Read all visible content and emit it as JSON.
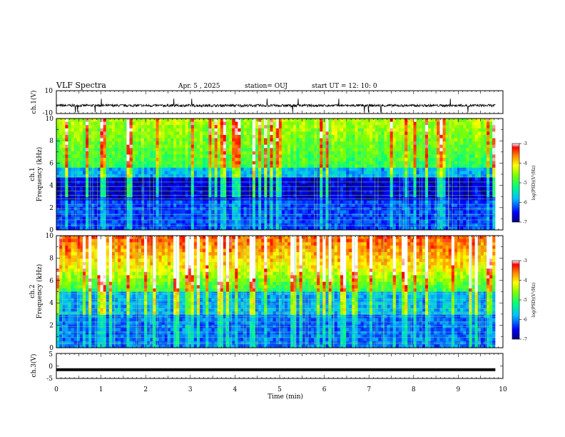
{
  "header": {
    "title": "VLF Spectra",
    "date": "Apr. 5 , 2025",
    "station": "station= OUJ",
    "start": "start UT = 12: 10: 0"
  },
  "chart_data": [
    {
      "type": "line",
      "panel": "ch1-waveform",
      "ylabel": "ch.1(V)",
      "ylim": [
        -10,
        10
      ],
      "yticks": [
        "10",
        "-10"
      ],
      "xlim": [
        0,
        10
      ],
      "baseline": -3,
      "note_series": "dense noisy waveform"
    },
    {
      "type": "heatmap",
      "panel": "ch1-spectrogram",
      "ylabel_line1": "ch.1",
      "ylabel_line2": "Frequency (kHz)",
      "ylim": [
        0,
        10
      ],
      "yticks": [
        "0",
        "2",
        "4",
        "6",
        "8",
        "10"
      ],
      "xlim": [
        0,
        10
      ],
      "colorbar": {
        "label": "log(PSD)(V²/Hz)",
        "range": [
          -7,
          -3
        ],
        "ticks": [
          "-3",
          "-4",
          "-5",
          "-6",
          "-7"
        ]
      }
    },
    {
      "type": "heatmap",
      "panel": "ch2-spectrogram",
      "ylabel_line1": "ch.2",
      "ylabel_line2": "Frequency (kHz)",
      "ylim": [
        0,
        10
      ],
      "yticks": [
        "0",
        "2",
        "4",
        "6",
        "8",
        "10"
      ],
      "xlim": [
        0,
        10
      ],
      "colorbar": {
        "label": "log(PSD)(V²/Hz)",
        "range": [
          -7,
          -3
        ],
        "ticks": [
          "-3",
          "-4",
          "-5",
          "-6",
          "-7"
        ]
      }
    },
    {
      "type": "line",
      "panel": "ch3-waveform",
      "ylabel": "ch.3(V)",
      "ylim": [
        -5,
        5
      ],
      "yticks": [
        "5",
        "0",
        "-5"
      ],
      "xlim": [
        0,
        10
      ],
      "baseline": -1.5,
      "note_series": "flat thick line"
    }
  ],
  "xaxis": {
    "label": "Time (min)",
    "ticks": [
      "0",
      "1",
      "2",
      "3",
      "4",
      "5",
      "6",
      "7",
      "8",
      "9",
      "10"
    ],
    "data_end_min": 9.83
  }
}
